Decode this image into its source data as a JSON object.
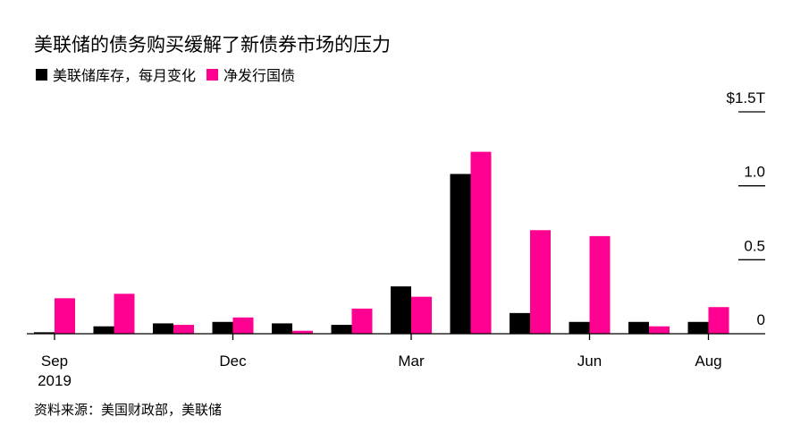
{
  "title": "美联储的债务购买缓解了新债券市场的压力",
  "source": "资料来源：美国财政部，美联储",
  "chart_data": {
    "type": "bar",
    "categories": [
      "Sep 2019",
      "Oct 2019",
      "Nov 2019",
      "Dec 2019",
      "Jan 2020",
      "Feb 2020",
      "Mar 2020",
      "Apr 2020",
      "May 2020",
      "Jun 2020",
      "Jul 2020",
      "Aug 2020"
    ],
    "series": [
      {
        "name": "美联储库存，每月变化",
        "color": "#000000",
        "values": [
          0.01,
          0.05,
          0.07,
          0.08,
          0.07,
          0.06,
          0.32,
          1.08,
          0.14,
          0.08,
          0.08,
          0.08
        ]
      },
      {
        "name": "净发行国债",
        "color": "#ff0090",
        "values": [
          0.24,
          0.27,
          0.06,
          0.11,
          0.02,
          0.17,
          0.25,
          1.23,
          0.7,
          0.66,
          0.05,
          0.18
        ]
      }
    ],
    "x_tick_labels": [
      {
        "index": 0,
        "label": "Sep",
        "sublabel": "2019"
      },
      {
        "index": 3,
        "label": "Dec"
      },
      {
        "index": 6,
        "label": "Mar"
      },
      {
        "index": 9,
        "label": "Jun"
      },
      {
        "index": 11,
        "label": "Aug"
      }
    ],
    "y_ticks": [
      {
        "value": 0,
        "label": "0"
      },
      {
        "value": 0.5,
        "label": "0.5"
      },
      {
        "value": 1.0,
        "label": "1.0"
      },
      {
        "value": 1.5,
        "label": "$1.5T"
      }
    ],
    "ylim": [
      0,
      1.5
    ],
    "xlabel": "",
    "ylabel": "",
    "legend_position": "top-left",
    "grid": false
  }
}
